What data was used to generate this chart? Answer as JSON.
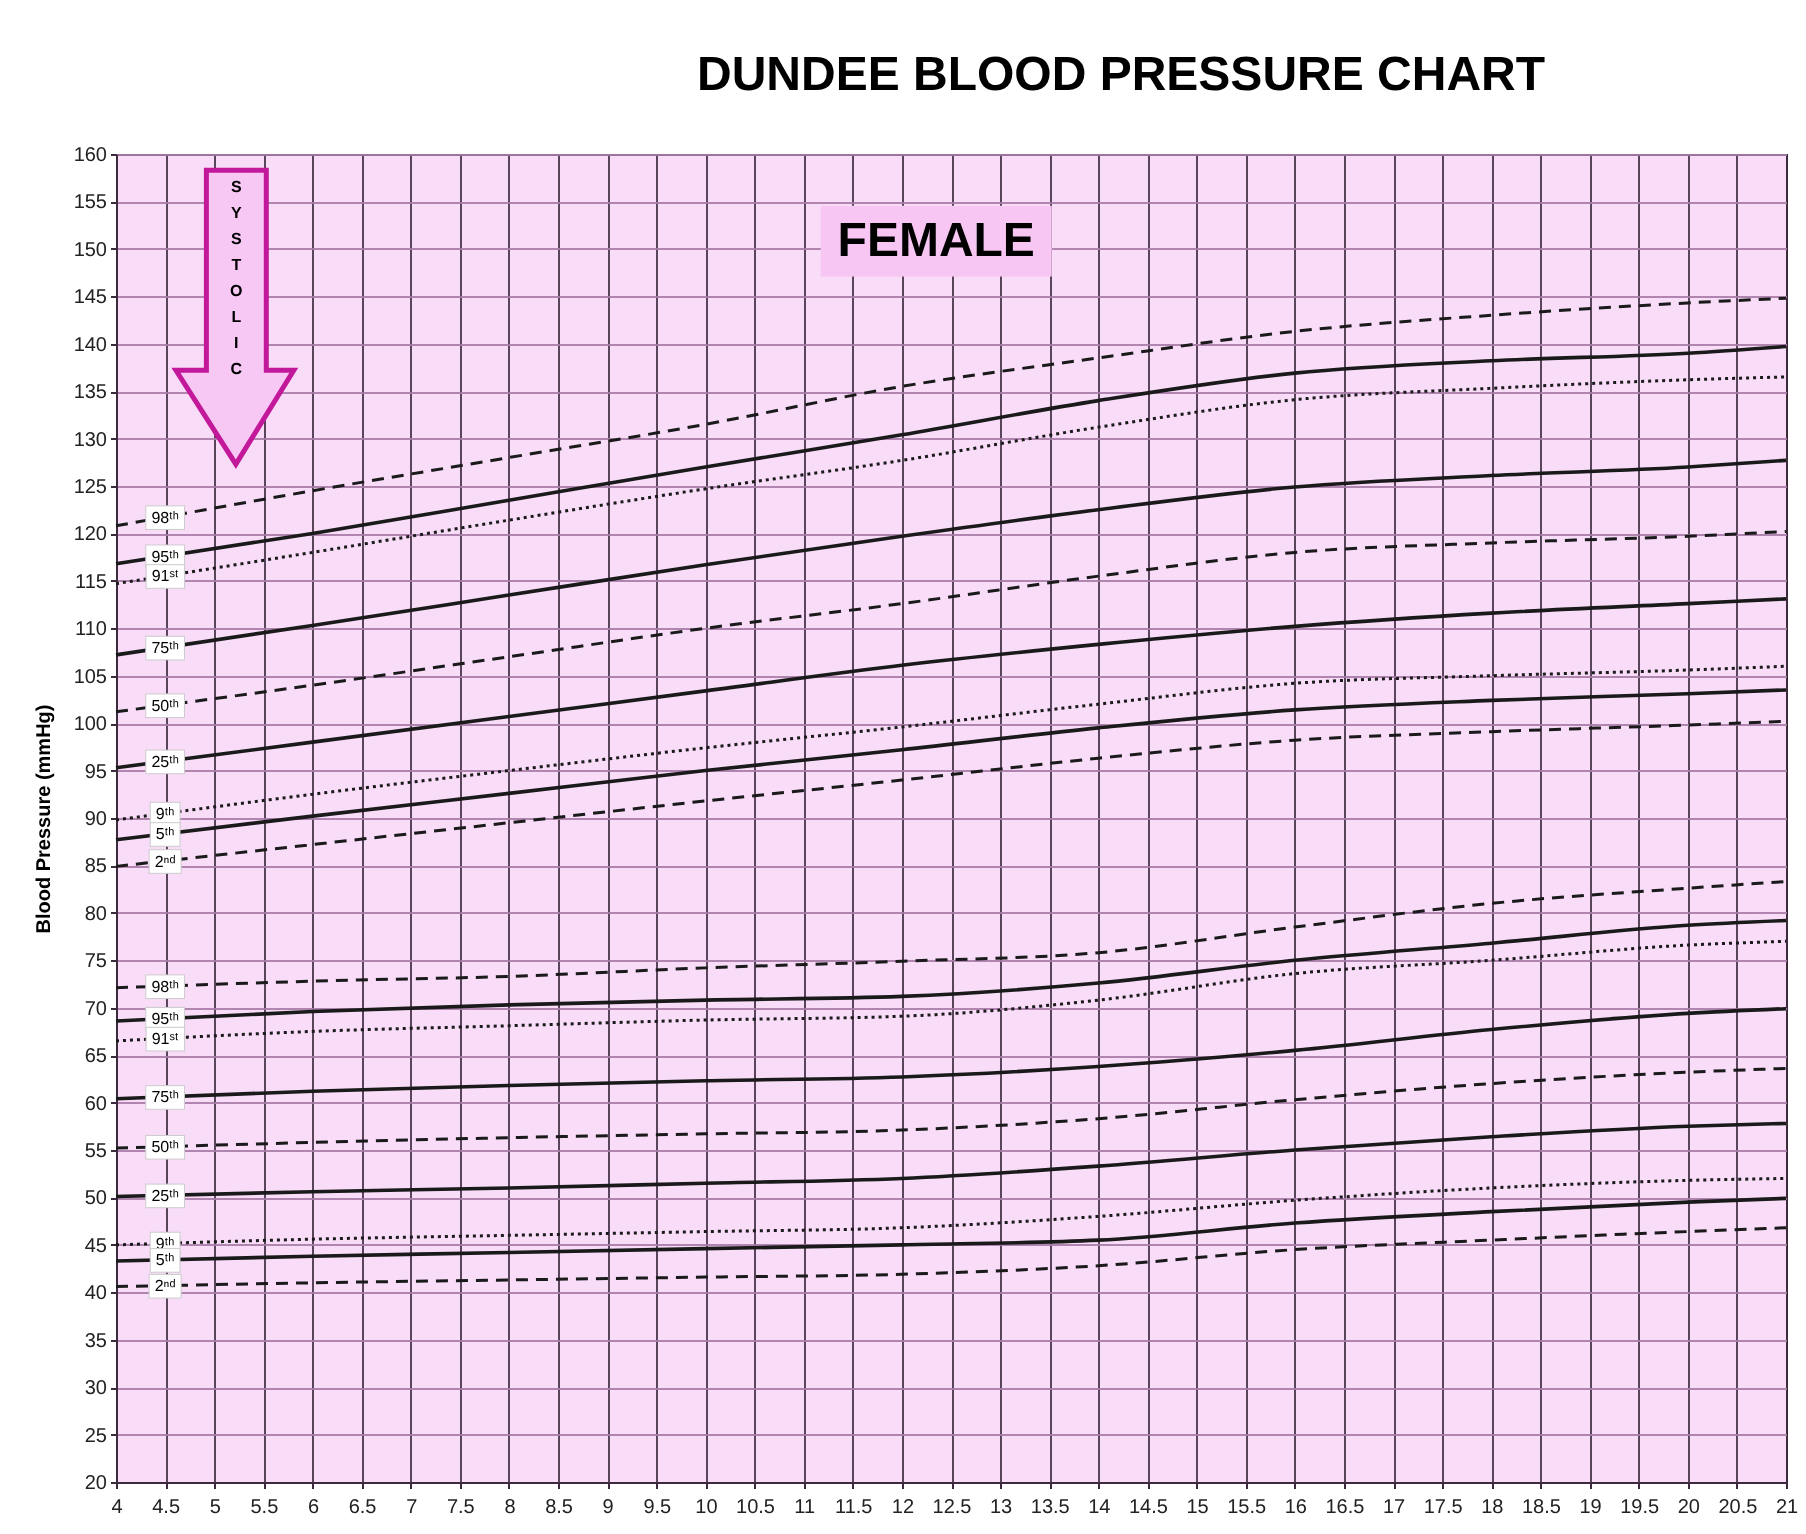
{
  "chart_data": {
    "type": "line",
    "title": "DUNDEE BLOOD PRESSURE CHART",
    "ylabel": "Blood Pressure (mmHg)",
    "annotations": [
      "FEMALE",
      "SYSTOLIC"
    ],
    "x": [
      4,
      6,
      8,
      10,
      12,
      14,
      16,
      18,
      20,
      21
    ],
    "xlim": [
      4,
      21
    ],
    "xticks": [
      4,
      4.5,
      5,
      5.5,
      6,
      6.5,
      7,
      7.5,
      8,
      8.5,
      9,
      9.5,
      10,
      10.5,
      11,
      11.5,
      12,
      12.5,
      13,
      13.5,
      14,
      14.5,
      15,
      15.5,
      16,
      16.5,
      17,
      17.5,
      18,
      18.5,
      19,
      19.5,
      20,
      20.5,
      21
    ],
    "ylim": [
      20,
      160
    ],
    "yticks": [
      20,
      25,
      30,
      35,
      40,
      45,
      50,
      55,
      60,
      65,
      70,
      75,
      80,
      85,
      90,
      95,
      100,
      105,
      110,
      115,
      120,
      125,
      130,
      135,
      140,
      145,
      150,
      155,
      160
    ],
    "grid": true,
    "series": [
      {
        "name": "98ᵗʰ",
        "color": "#1a1a1a",
        "line_style": "dashed",
        "values": [
          120.8,
          124.5,
          128,
          131.5,
          135.5,
          138.5,
          141.3,
          143,
          144.3,
          144.8
        ]
      },
      {
        "name": "95ᵗʰ",
        "color": "#1a1a1a",
        "line_style": "solid",
        "values": [
          116.8,
          120,
          123.5,
          127,
          130.4,
          134,
          136.9,
          138.2,
          139,
          139.7
        ]
      },
      {
        "name": "91ˢᵗ",
        "color": "#1a1a1a",
        "line_style": "dotted",
        "values": [
          114.7,
          118,
          121.4,
          124.7,
          127.7,
          131.2,
          134.1,
          135.3,
          136.2,
          136.5
        ]
      },
      {
        "name": "75ᵗʰ",
        "color": "#1a1a1a",
        "line_style": "solid",
        "values": [
          107.2,
          110.3,
          113.5,
          116.7,
          119.7,
          122.5,
          124.9,
          126.1,
          127,
          127.7
        ]
      },
      {
        "name": "50ᵗʰ",
        "color": "#1a1a1a",
        "line_style": "dashed",
        "values": [
          101.2,
          104,
          107,
          110,
          112.6,
          115.5,
          118,
          119,
          119.7,
          120.2
        ]
      },
      {
        "name": "25ᵗʰ",
        "color": "#1a1a1a",
        "line_style": "solid",
        "values": [
          95.3,
          98,
          100.7,
          103.4,
          106.1,
          108.3,
          110.2,
          111.6,
          112.6,
          113.1
        ]
      },
      {
        "name": "9ᵗʰ",
        "color": "#1a1a1a",
        "line_style": "dotted",
        "values": [
          89.8,
          92.5,
          95,
          97.4,
          99.6,
          102,
          104.2,
          105,
          105.6,
          106
        ]
      },
      {
        "name": "5ᵗʰ",
        "color": "#1a1a1a",
        "line_style": "solid",
        "values": [
          87.7,
          90.2,
          92.6,
          95,
          97.2,
          99.5,
          101.4,
          102.4,
          103.1,
          103.5
        ]
      },
      {
        "name": "2ⁿᵈ",
        "color": "#1a1a1a",
        "line_style": "dashed",
        "values": [
          84.9,
          87.2,
          89.5,
          91.8,
          94,
          96.3,
          98.2,
          99.1,
          99.8,
          100.2
        ]
      },
      {
        "name": "98ᵗʰ",
        "color": "#1a1a1a",
        "line_style": "dashed",
        "values": [
          72.1,
          72.8,
          73.3,
          74.2,
          74.9,
          75.8,
          78.5,
          81,
          82.6,
          83.3
        ]
      },
      {
        "name": "95ᵗʰ",
        "color": "#1a1a1a",
        "line_style": "solid",
        "values": [
          68.6,
          69.6,
          70.3,
          70.8,
          71.2,
          72.6,
          75,
          76.8,
          78.7,
          79.2
        ]
      },
      {
        "name": "91ˢᵗ",
        "color": "#1a1a1a",
        "line_style": "dotted",
        "values": [
          66.5,
          67.5,
          68.1,
          68.7,
          69.1,
          70.8,
          73.6,
          75,
          76.6,
          77
        ]
      },
      {
        "name": "75ᵗʰ",
        "color": "#1a1a1a",
        "line_style": "solid",
        "values": [
          60.4,
          61.2,
          61.8,
          62.3,
          62.7,
          63.8,
          65.5,
          67.7,
          69.4,
          69.9
        ]
      },
      {
        "name": "50ᵗʰ",
        "color": "#1a1a1a",
        "line_style": "dashed",
        "values": [
          55.2,
          55.8,
          56.3,
          56.7,
          57.1,
          58.3,
          60.3,
          62,
          63.2,
          63.6
        ]
      },
      {
        "name": "25ᵗʰ",
        "color": "#1a1a1a",
        "line_style": "solid",
        "values": [
          50.1,
          50.6,
          51,
          51.5,
          52,
          53.3,
          55,
          56.4,
          57.5,
          57.8
        ]
      },
      {
        "name": "9ᵗʰ",
        "color": "#1a1a1a",
        "line_style": "dotted",
        "values": [
          45,
          45.6,
          46,
          46.4,
          46.8,
          48,
          49.7,
          51,
          51.8,
          52
        ]
      },
      {
        "name": "5ᵗʰ",
        "color": "#1a1a1a",
        "line_style": "solid",
        "values": [
          43.3,
          43.8,
          44.2,
          44.6,
          45,
          45.5,
          47.3,
          48.5,
          49.5,
          49.9
        ]
      },
      {
        "name": "2ⁿᵈ",
        "color": "#1a1a1a",
        "line_style": "dashed",
        "values": [
          40.6,
          41,
          41.3,
          41.6,
          41.9,
          42.8,
          44.5,
          45.5,
          46.4,
          46.8
        ]
      }
    ]
  }
}
